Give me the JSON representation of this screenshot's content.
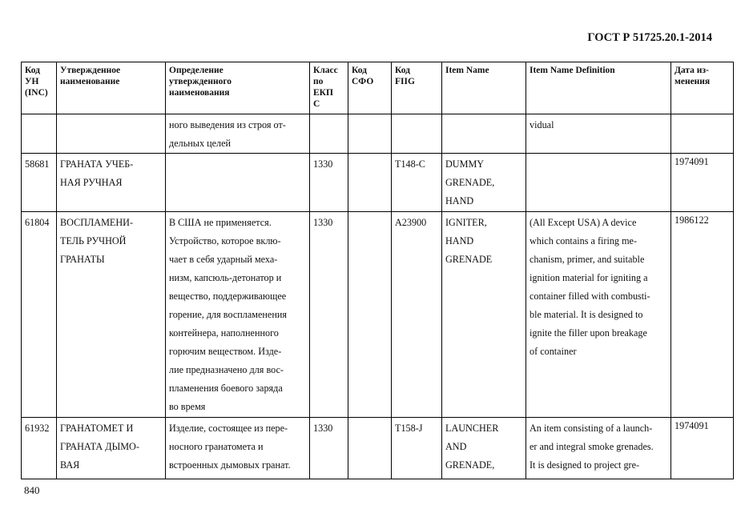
{
  "header": {
    "doc_title": "ГОСТ Р 51725.20.1-2014"
  },
  "footer": {
    "page_number": "840"
  },
  "table": {
    "columns": [
      "Код\nУН\n(INC)",
      "Утвержденное\nнаименование",
      "Определение\nутвержденного\nнаименования",
      "Класс\nпо\nЕКП\nС",
      "Код\nСФО",
      "Код\nFIIG",
      "Item Name",
      "Item Name Definition",
      "Дата из-\nменения"
    ],
    "rows": [
      [
        "",
        "",
        "ного выведения из строя от-\nдельных целей",
        "",
        "",
        "",
        "",
        "vidual",
        ""
      ],
      [
        "58681",
        "ГРАНАТА УЧЕБ-\nНАЯ РУЧНАЯ",
        "",
        "1330",
        "",
        "T148-C",
        "DUMMY\nGRENADE,\nHAND",
        "",
        "1974091"
      ],
      [
        "61804",
        "ВОСПЛАМЕНИ-\nТЕЛЬ РУЧНОЙ\nГРАНАТЫ",
        "В США не применяется.\nУстройство, которое вклю-\nчает в себя ударный меха-\nнизм, капсюль-детонатор и\nвещество, поддерживающее\nгорение, для воспламенения\nконтейнера, наполненного\nгорючим веществом. Изде-\nлие предназначено для вос-\nпламенения боевого заряда\nво время",
        "1330",
        "",
        "A23900",
        "IGNITER,\nHAND\nGRENADE",
        "(All Except USA) A device\nwhich contains a firing me-\nchanism, primer, and suitable\nignition material for igniting a\ncontainer filled with combusti-\nble material. It is designed to\nignite the filler upon breakage\nof container",
        "1986122"
      ],
      [
        "61932",
        "ГРАНАТОМЕТ И\nГРАНАТА ДЫМО-\nВАЯ",
        "Изделие, состоящее из пере-\nносного гранатомета и\nвстроенных дымовых гранат.",
        "1330",
        "",
        "T158-J",
        "LAUNCHER\nAND\nGRENADE,",
        "An item consisting of a launch-\ner and integral smoke grenades.\nIt is designed to project gre-",
        "1974091"
      ]
    ]
  }
}
